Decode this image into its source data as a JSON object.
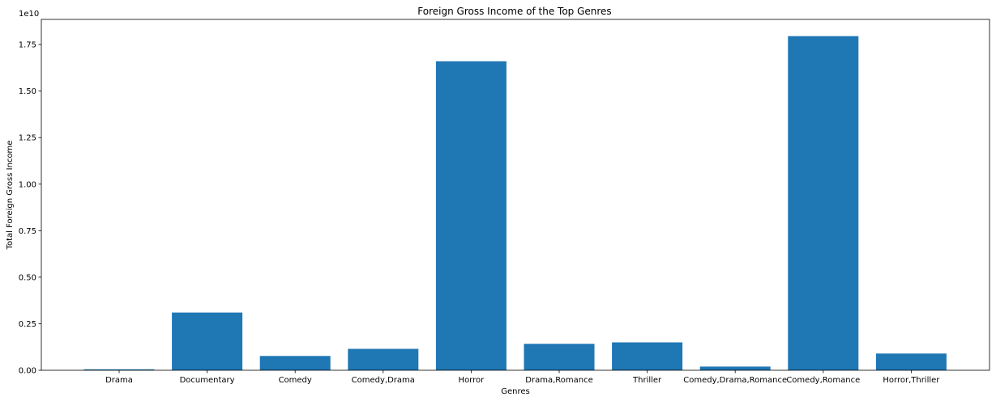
{
  "chart_data": {
    "type": "bar",
    "title": "Foreign Gross Income of the Top Genres",
    "xlabel": "Genres",
    "ylabel": "Total Foreign Gross Income",
    "y_offset_label": "1e10",
    "categories": [
      "Drama",
      "Documentary",
      "Comedy",
      "Comedy,Drama",
      "Horror",
      "Drama,Romance",
      "Thriller",
      "Comedy,Drama,Romance",
      "Comedy,Romance",
      "Horror,Thriller"
    ],
    "values": [
      50000000,
      3100000000,
      770000000,
      1150000000,
      16600000000,
      1420000000,
      1500000000,
      200000000,
      17950000000,
      900000000
    ],
    "ylim": [
      0,
      18850000000
    ],
    "yticks": [
      0,
      2500000000,
      5000000000,
      7500000000,
      10000000000,
      12500000000,
      15000000000,
      17500000000
    ],
    "ytick_labels": [
      "0.00",
      "0.25",
      "0.50",
      "0.75",
      "1.00",
      "1.25",
      "1.50",
      "1.75"
    ],
    "grid": false,
    "bar_color": "#1f77b4"
  }
}
